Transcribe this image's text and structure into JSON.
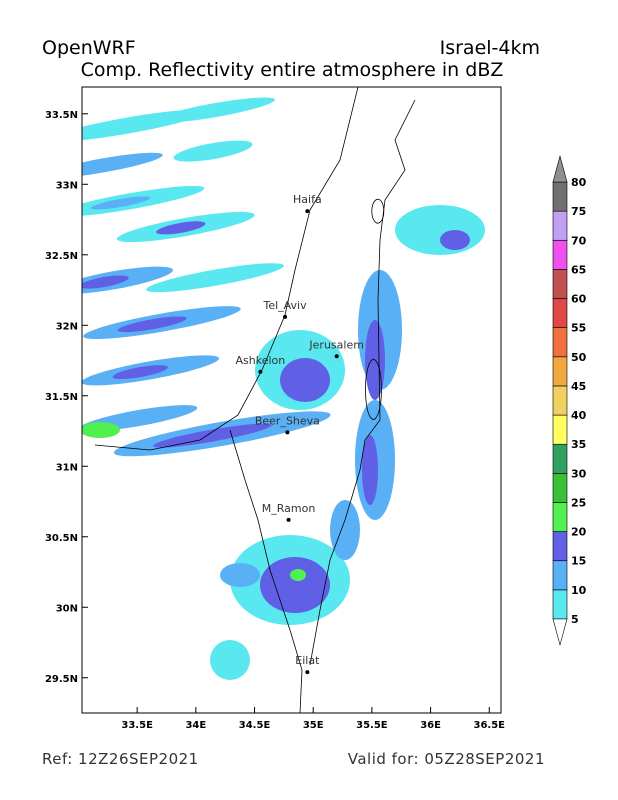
{
  "header": {
    "left": "OpenWRF",
    "right": "Israel-4km",
    "title": "Comp. Reflectivity entire atmosphere in dBZ"
  },
  "map": {
    "xlim": [
      33.03,
      36.6
    ],
    "ylim": [
      29.25,
      33.69
    ],
    "lon_ticks": [
      {
        "value": 33.5,
        "label": "33.5E"
      },
      {
        "value": 34,
        "label": "34E"
      },
      {
        "value": 34.5,
        "label": "34.5E"
      },
      {
        "value": 35,
        "label": "35E"
      },
      {
        "value": 35.5,
        "label": "35.5E"
      },
      {
        "value": 36,
        "label": "36E"
      },
      {
        "value": 36.5,
        "label": "36.5E"
      }
    ],
    "lat_ticks": [
      {
        "value": 29.5,
        "label": "29.5N"
      },
      {
        "value": 30,
        "label": "30N"
      },
      {
        "value": 30.5,
        "label": "30.5N"
      },
      {
        "value": 31,
        "label": "31N"
      },
      {
        "value": 31.5,
        "label": "31.5N"
      },
      {
        "value": 32,
        "label": "32N"
      },
      {
        "value": 32.5,
        "label": "32.5N"
      },
      {
        "value": 33,
        "label": "33N"
      },
      {
        "value": 33.5,
        "label": "33.5N"
      }
    ],
    "cities": [
      {
        "name": "Haifa",
        "lon": 34.95,
        "lat": 32.81
      },
      {
        "name": "Tel_Aviv",
        "lon": 34.76,
        "lat": 32.06
      },
      {
        "name": "Jerusalem",
        "lon": 35.2,
        "lat": 31.78
      },
      {
        "name": "Ashkelon",
        "lon": 34.55,
        "lat": 31.67
      },
      {
        "name": "Beer_Sheva",
        "lon": 34.78,
        "lat": 31.24
      },
      {
        "name": "M_Ramon",
        "lon": 34.79,
        "lat": 30.62
      },
      {
        "name": "Eilat",
        "lon": 34.95,
        "lat": 29.54
      }
    ]
  },
  "colorbar": {
    "levels": [
      5,
      10,
      15,
      20,
      25,
      30,
      35,
      40,
      45,
      50,
      55,
      60,
      65,
      70,
      75,
      80
    ],
    "colors": [
      "#ffffff",
      "#5ae8f0",
      "#5ab0f5",
      "#6060e6",
      "#50f050",
      "#38c038",
      "#30a060",
      "#ffff60",
      "#f0d060",
      "#f0a840",
      "#f07040",
      "#e04848",
      "#c05050",
      "#f050f0",
      "#c0a0f0",
      "#707070",
      "#909090"
    ]
  },
  "footer": {
    "ref": "Ref: 12Z26SEP2021",
    "valid": "Valid for: 05Z28SEP2021"
  }
}
